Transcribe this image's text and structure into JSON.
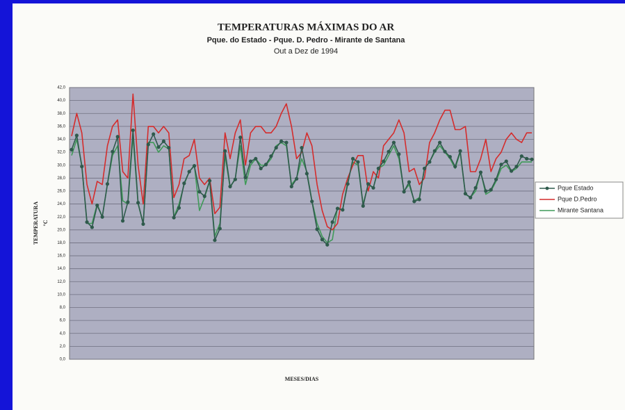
{
  "chart_data": {
    "type": "line",
    "title": "TEMPERATURAS MÁXIMAS DO AR",
    "subtitle": "Pque. do Estado - Pque. D. Pedro - Mirante de Santana",
    "period": "Out a Dez de 1994",
    "y_label": "TEMPERATURA",
    "y_unit": "°C",
    "x_label": "MESES/DIAS",
    "grid": true,
    "legend": "right",
    "categories": [
      null,
      null,
      null,
      null,
      null,
      null,
      null,
      null,
      null,
      null,
      null,
      null,
      null,
      null,
      null,
      null,
      null,
      null,
      null,
      null,
      null,
      null,
      null,
      null,
      null,
      null,
      null,
      null,
      null,
      null,
      null,
      null,
      null,
      null,
      null,
      null,
      null,
      null,
      null,
      null,
      null,
      null,
      null,
      null,
      null,
      null,
      null,
      null,
      null,
      null,
      null,
      null,
      null,
      null,
      null,
      null,
      null,
      null,
      null,
      null,
      null,
      null,
      null,
      null,
      null,
      null,
      null,
      null,
      null,
      null,
      null,
      null,
      null,
      null,
      null,
      null,
      null,
      null,
      null,
      null,
      null,
      null,
      null,
      null,
      null,
      null,
      null,
      null,
      null,
      null,
      null
    ],
    "ylim": [
      0,
      42
    ],
    "yticks": [
      {
        "value": 0,
        "label": "0,0"
      },
      {
        "value": 2,
        "label": "2,0"
      },
      {
        "value": 4,
        "label": "4,0"
      },
      {
        "value": 6,
        "label": "6,0"
      },
      {
        "value": 8,
        "label": "8,0"
      },
      {
        "value": 10,
        "label": "10,0"
      },
      {
        "value": 12,
        "label": "12,0"
      },
      {
        "value": 14,
        "label": "14,0"
      },
      {
        "value": 16,
        "label": "16,0"
      },
      {
        "value": 18,
        "label": "18,0"
      },
      {
        "value": 20,
        "label": "20,0"
      },
      {
        "value": 22,
        "label": "22,0"
      },
      {
        "value": 24,
        "label": "24,0"
      },
      {
        "value": 26,
        "label": "26,0"
      },
      {
        "value": 28,
        "label": "28,0"
      },
      {
        "value": 30,
        "label": "30,0"
      },
      {
        "value": 32,
        "label": "32,0"
      },
      {
        "value": 34,
        "label": "34,0"
      },
      {
        "value": 36,
        "label": "36,0"
      },
      {
        "value": 38,
        "label": "38,0"
      },
      {
        "value": 40,
        "label": "40,0"
      },
      {
        "value": 42,
        "label": "42,0"
      }
    ],
    "series": [
      {
        "name": "Pque Estado",
        "color": "#2f5a4c",
        "markers": true,
        "values": [
          32.4,
          34.6,
          29.8,
          21.2,
          20.4,
          23.8,
          22.0,
          27.1,
          32.1,
          34.4,
          21.4,
          24.3,
          35.4,
          24.2,
          20.9,
          33.2,
          34.8,
          32.8,
          33.7,
          32.7,
          21.9,
          23.4,
          27.2,
          29.0,
          29.9,
          25.9,
          25.2,
          27.6,
          18.4,
          20.2,
          32.2,
          26.7,
          27.8,
          34.3,
          28.1,
          30.6,
          31.0,
          29.5,
          30.1,
          31.4,
          32.7,
          33.7,
          33.5,
          26.7,
          27.9,
          32.7,
          28.7,
          24.4,
          20.1,
          18.5,
          17.7,
          21.2,
          23.3,
          23.1,
          27.1,
          31.0,
          30.5,
          23.7,
          27.1,
          26.5,
          29.5,
          30.6,
          32.1,
          33.5,
          31.7,
          25.9,
          27.4,
          24.4,
          24.7,
          29.5,
          30.5,
          32.2,
          33.5,
          32.1,
          31.3,
          29.8,
          32.2,
          25.6,
          25.0,
          26.5,
          28.9,
          26.0,
          26.2,
          27.8,
          30.1,
          30.6,
          29.1,
          29.8,
          31.4,
          31.0,
          30.9
        ]
      },
      {
        "name": "Pque D.Pedro",
        "color": "#d42c2c",
        "markers": false,
        "values": [
          34.5,
          38,
          35,
          27,
          24,
          27.5,
          27,
          33,
          36,
          37,
          29,
          28,
          41,
          30,
          24,
          36,
          36,
          35,
          36,
          35,
          25,
          27,
          31,
          31.5,
          34,
          28,
          27,
          28,
          22.5,
          23.5,
          35,
          31,
          35,
          37,
          30,
          35,
          36,
          36,
          35,
          35,
          36,
          38,
          39.5,
          36,
          31,
          32,
          35,
          33,
          27,
          23,
          20.5,
          20,
          21,
          25.5,
          28,
          30,
          31.5,
          31.5,
          26,
          29,
          28,
          33,
          34,
          35,
          37,
          35,
          29,
          29.5,
          27,
          28,
          33.5,
          35,
          37,
          38.5,
          38.5,
          35.5,
          35.5,
          36,
          29,
          29,
          31,
          34,
          29,
          31,
          32,
          34,
          35,
          34,
          33.5,
          35,
          35
        ]
      },
      {
        "name": "Mirante Santana",
        "color": "#3f9a58",
        "markers": false,
        "values": [
          31.5,
          34,
          30,
          21,
          21,
          24,
          22,
          27,
          31.5,
          33,
          24.5,
          24,
          34.5,
          24,
          21,
          33.5,
          33.5,
          32,
          33,
          32.5,
          22,
          24,
          27,
          29,
          30,
          23,
          25,
          27.5,
          19,
          21,
          31.5,
          26.5,
          28,
          33,
          27,
          30,
          31,
          30,
          30,
          31,
          33,
          33.5,
          33,
          27,
          28,
          31,
          29,
          24.5,
          21,
          19,
          18,
          18.5,
          23.5,
          23,
          27.5,
          30.5,
          30,
          24,
          27,
          26.5,
          29.5,
          30,
          31.5,
          33,
          31,
          26,
          27,
          24.5,
          25,
          29.5,
          30.5,
          32,
          33,
          32,
          31,
          29.5,
          32,
          25.5,
          25,
          26,
          29,
          25.5,
          26,
          27.5,
          29.5,
          30,
          29,
          29.5,
          30.5,
          30.5,
          30.5
        ]
      }
    ]
  }
}
